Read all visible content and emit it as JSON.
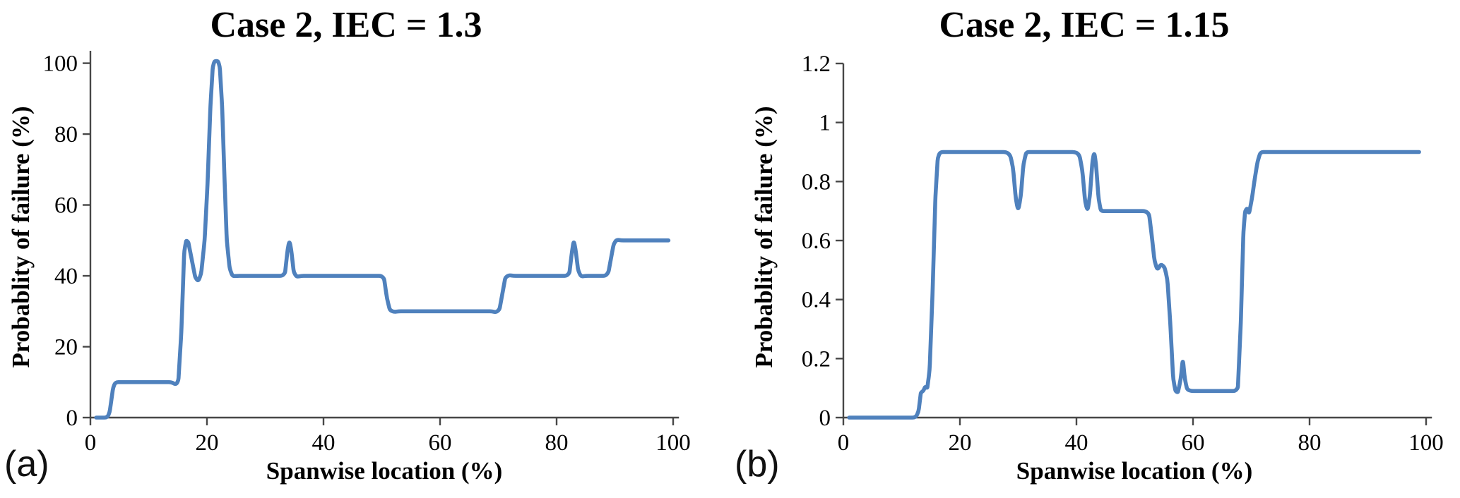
{
  "figure": {
    "background": "#ffffff",
    "line_color": "#4f81bd",
    "axis_color": "#474747",
    "text_color": "#000000"
  },
  "chart_data": [
    {
      "type": "line",
      "panel_label": "(a)",
      "title": "Case 2, IEC = 1.3",
      "xlabel": "Spanwise location (%)",
      "ylabel": "Probablity of failure (%)",
      "xlim": [
        0,
        101
      ],
      "ylim": [
        0,
        103.5
      ],
      "x_ticks": [
        0,
        20,
        40,
        60,
        80,
        100
      ],
      "y_ticks": [
        0,
        20,
        40,
        60,
        80,
        100
      ],
      "grid": false,
      "legend": null,
      "series": [
        {
          "name": "Probability of failure",
          "color": "#4f81bd",
          "points": [
            [
              1,
              0
            ],
            [
              2.9,
              0
            ],
            [
              3.3,
              1.5
            ],
            [
              3.9,
              8.5
            ],
            [
              4.3,
              10
            ],
            [
              5.5,
              10
            ],
            [
              13.9,
              10
            ],
            [
              14.7,
              9.3
            ],
            [
              15.1,
              10.5
            ],
            [
              15.6,
              24
            ],
            [
              16.1,
              47
            ],
            [
              16.45,
              50
            ],
            [
              16.8,
              49.5
            ],
            [
              17.4,
              44.5
            ],
            [
              18,
              39.5
            ],
            [
              18.5,
              38.5
            ],
            [
              19,
              40.5
            ],
            [
              19.6,
              50
            ],
            [
              20.1,
              66
            ],
            [
              20.6,
              88
            ],
            [
              21,
              99
            ],
            [
              21.3,
              100.6
            ],
            [
              21.9,
              100.6
            ],
            [
              22.2,
              99
            ],
            [
              22.6,
              88
            ],
            [
              23,
              68
            ],
            [
              23.4,
              50
            ],
            [
              23.9,
              42
            ],
            [
              24.4,
              39.9
            ],
            [
              25.2,
              40
            ],
            [
              32.9,
              40
            ],
            [
              33.4,
              40.8
            ],
            [
              33.85,
              47.5
            ],
            [
              34.15,
              50
            ],
            [
              34.45,
              47.5
            ],
            [
              34.9,
              41
            ],
            [
              35.4,
              39.7
            ],
            [
              36.2,
              40
            ],
            [
              49.9,
              40
            ],
            [
              50.4,
              39.2
            ],
            [
              50.9,
              33.5
            ],
            [
              51.4,
              30.3
            ],
            [
              52.1,
              29.8
            ],
            [
              52.9,
              30
            ],
            [
              68.9,
              30
            ],
            [
              69.6,
              29.7
            ],
            [
              70.2,
              30.5
            ],
            [
              70.7,
              35
            ],
            [
              71.2,
              39.5
            ],
            [
              71.8,
              40.2
            ],
            [
              72.6,
              40
            ],
            [
              81.7,
              40
            ],
            [
              82.2,
              40.8
            ],
            [
              82.65,
              47
            ],
            [
              82.95,
              50
            ],
            [
              83.25,
              47.5
            ],
            [
              83.7,
              41.5
            ],
            [
              84.2,
              39.8
            ],
            [
              85,
              40
            ],
            [
              88.4,
              40
            ],
            [
              88.9,
              41
            ],
            [
              89.4,
              45.5
            ],
            [
              89.8,
              49
            ],
            [
              90.3,
              50.2
            ],
            [
              91.1,
              50
            ],
            [
              99.2,
              50
            ]
          ]
        }
      ]
    },
    {
      "type": "line",
      "panel_label": "(b)",
      "title": "Case 2, IEC = 1.15",
      "xlabel": "Spanwise location (%)",
      "ylabel": "Probablity of failure (%)",
      "xlim": [
        0,
        101
      ],
      "ylim": [
        0,
        1.2
      ],
      "x_ticks": [
        0,
        20,
        40,
        60,
        80,
        100
      ],
      "y_ticks": [
        0,
        0.2,
        0.4,
        0.6,
        0.8,
        1,
        1.2
      ],
      "grid": false,
      "legend": null,
      "series": [
        {
          "name": "Probability of failure",
          "color": "#4f81bd",
          "points": [
            [
              1,
              0
            ],
            [
              12.4,
              0
            ],
            [
              12.9,
              0.02
            ],
            [
              13.3,
              0.085
            ],
            [
              13.7,
              0.09
            ],
            [
              14.05,
              0.105
            ],
            [
              14.4,
              0.1
            ],
            [
              14.8,
              0.16
            ],
            [
              15.3,
              0.42
            ],
            [
              15.8,
              0.75
            ],
            [
              16.2,
              0.88
            ],
            [
              16.6,
              0.9
            ],
            [
              17.6,
              0.9
            ],
            [
              28.5,
              0.9
            ],
            [
              29.1,
              0.85
            ],
            [
              29.6,
              0.74
            ],
            [
              30,
              0.7
            ],
            [
              30.45,
              0.75
            ],
            [
              30.9,
              0.86
            ],
            [
              31.4,
              0.9
            ],
            [
              32.3,
              0.9
            ],
            [
              40.4,
              0.9
            ],
            [
              41,
              0.84
            ],
            [
              41.5,
              0.73
            ],
            [
              41.9,
              0.7
            ],
            [
              42.3,
              0.75
            ],
            [
              42.75,
              0.87
            ],
            [
              43.05,
              0.9
            ],
            [
              43.35,
              0.86
            ],
            [
              43.8,
              0.74
            ],
            [
              44.2,
              0.7
            ],
            [
              45.1,
              0.7
            ],
            [
              52.4,
              0.7
            ],
            [
              52.9,
              0.62
            ],
            [
              53.4,
              0.53
            ],
            [
              53.9,
              0.5
            ],
            [
              54.5,
              0.52
            ],
            [
              55.1,
              0.51
            ],
            [
              55.6,
              0.47
            ],
            [
              56.1,
              0.32
            ],
            [
              56.6,
              0.13
            ],
            [
              57,
              0.09
            ],
            [
              57.4,
              0.085
            ],
            [
              57.9,
              0.13
            ],
            [
              58.25,
              0.2
            ],
            [
              58.6,
              0.13
            ],
            [
              59,
              0.095
            ],
            [
              59.7,
              0.09
            ],
            [
              67.2,
              0.09
            ],
            [
              67.7,
              0.1
            ],
            [
              68.2,
              0.32
            ],
            [
              68.65,
              0.63
            ],
            [
              68.95,
              0.7
            ],
            [
              69.3,
              0.71
            ],
            [
              69.6,
              0.69
            ],
            [
              70.1,
              0.74
            ],
            [
              70.6,
              0.81
            ],
            [
              71.1,
              0.87
            ],
            [
              71.6,
              0.9
            ],
            [
              72.6,
              0.9
            ],
            [
              98.8,
              0.9
            ]
          ]
        }
      ]
    }
  ]
}
